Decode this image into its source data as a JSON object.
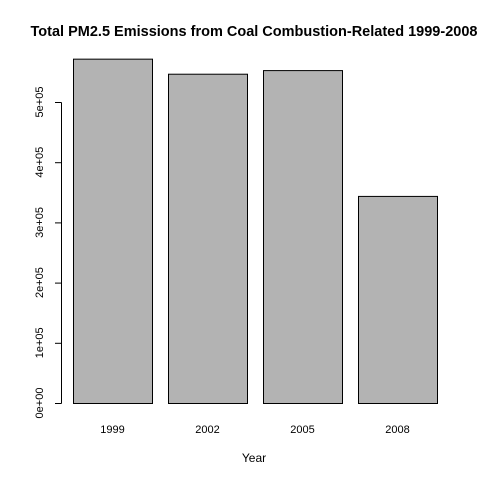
{
  "chart_data": {
    "type": "bar",
    "title": "Total PM2.5 Emissions from Coal Combustion-Related 1999-2008",
    "xlabel": "Year",
    "ylabel": "",
    "categories": [
      "1999",
      "2002",
      "2005",
      "2008"
    ],
    "values": [
      572000,
      547000,
      553000,
      344000
    ],
    "ylim": [
      0,
      600000
    ],
    "yticks": [
      0,
      100000,
      200000,
      300000,
      400000,
      500000
    ],
    "ytick_labels": [
      "0e+00",
      "1e+05",
      "2e+05",
      "3e+05",
      "4e+05",
      "5e+05"
    ],
    "bar_color": "#b3b3b3",
    "grid": false,
    "legend": "none"
  }
}
